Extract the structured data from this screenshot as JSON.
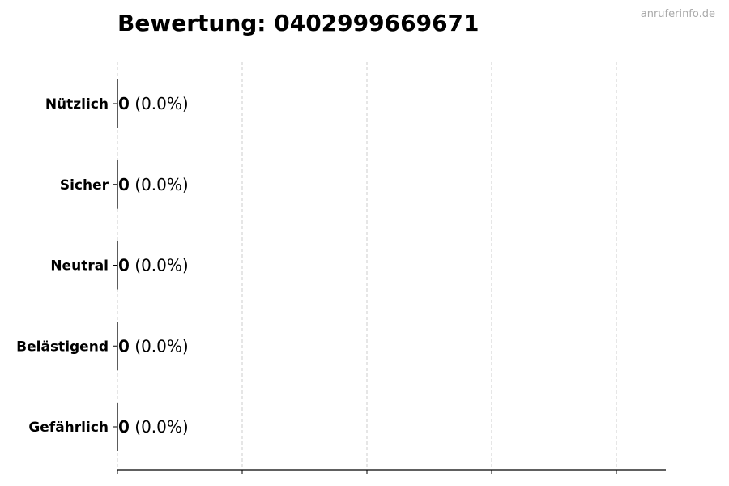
{
  "chart_data": {
    "type": "bar",
    "orientation": "horizontal",
    "title": "Bewertung: 0402999669671",
    "categories": [
      "Nützlich",
      "Sicher",
      "Neutral",
      "Belästigend",
      "Gefährlich"
    ],
    "values": [
      0,
      0,
      0,
      0,
      0
    ],
    "labels": [
      {
        "count": "0",
        "percent": "(0.0%)"
      },
      {
        "count": "0",
        "percent": "(0.0%)"
      },
      {
        "count": "0",
        "percent": "(0.0%)"
      },
      {
        "count": "0",
        "percent": "(0.0%)"
      },
      {
        "count": "0",
        "percent": "(0.0%)"
      }
    ],
    "xlabel": "",
    "ylabel": "",
    "x_tick_labels_shown": false,
    "x_ticks_count": 5,
    "grid": "x, dashed",
    "colors": {
      "bar_edge": "#333333",
      "grid": "#cccccc",
      "watermark": "#aaaaaa"
    }
  },
  "watermark": "anruferinfo.de"
}
